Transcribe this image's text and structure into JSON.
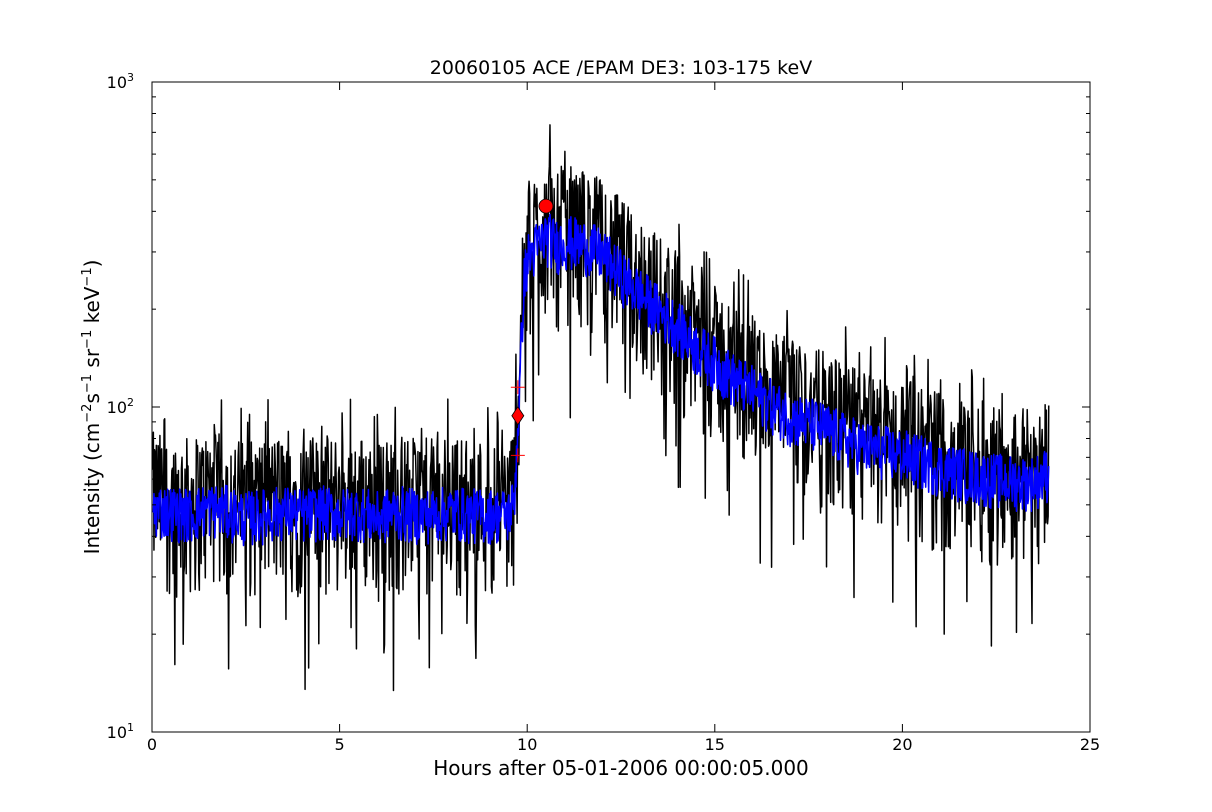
{
  "chart_data": {
    "type": "line",
    "title": "20060105 ACE /EPAM DE3: 103-175 keV",
    "xlabel": "Hours after 05-01-2006 00:00:05.000",
    "ylabel_parts": {
      "prefix": "Intensity (cm",
      "sup1": "−2",
      "mid1": "s",
      "sup2": "−1",
      "mid2": " sr",
      "sup3": "−1",
      "mid3": " keV",
      "sup4": "−1",
      "suffix": ")"
    },
    "xlim": [
      0,
      25
    ],
    "ylim": [
      10,
      1000
    ],
    "yscale": "log",
    "grid": false,
    "x_ticks": [
      {
        "value": 0,
        "label": "0"
      },
      {
        "value": 5,
        "label": "5"
      },
      {
        "value": 10,
        "label": "10"
      },
      {
        "value": 15,
        "label": "15"
      },
      {
        "value": 20,
        "label": "20"
      },
      {
        "value": 25,
        "label": "25"
      }
    ],
    "y_ticks": [
      {
        "value": 10,
        "base": "10",
        "exp": "1"
      },
      {
        "value": 100,
        "base": "10",
        "exp": "2"
      },
      {
        "value": 1000,
        "base": "10",
        "exp": "3"
      }
    ],
    "series": [
      {
        "role": "raw",
        "color": "#000000",
        "x": [
          0.0,
          0.5,
          1.0,
          1.5,
          2.0,
          2.5,
          3.0,
          3.5,
          4.0,
          4.5,
          5.0,
          5.5,
          6.0,
          6.5,
          7.0,
          7.5,
          8.0,
          8.5,
          9.0,
          9.5,
          9.65,
          9.75,
          9.8,
          9.9,
          10.0,
          10.2,
          10.5,
          10.8,
          11.0,
          11.5,
          12.0,
          12.5,
          13.0,
          13.5,
          14.0,
          14.5,
          15.0,
          15.5,
          16.0,
          16.5,
          17.0,
          17.5,
          18.0,
          18.5,
          19.0,
          19.5,
          20.0,
          20.5,
          21.0,
          21.5,
          22.0,
          22.5,
          23.0,
          23.5,
          23.9
        ],
        "y": [
          48,
          47,
          46,
          48,
          47,
          45,
          46,
          47,
          46,
          47,
          46,
          47,
          45,
          47,
          46,
          46,
          47,
          46,
          46,
          46,
          50,
          85,
          110,
          230,
          280,
          300,
          330,
          310,
          320,
          310,
          290,
          250,
          220,
          195,
          175,
          150,
          135,
          120,
          110,
          100,
          92,
          88,
          84,
          78,
          74,
          72,
          70,
          67,
          64,
          62,
          60,
          59,
          58,
          58,
          62
        ],
        "spread_low": 0.55,
        "spread_high": 1.75
      },
      {
        "role": "smoothed",
        "color": "#0000ff",
        "x": [
          0.0,
          0.5,
          1.0,
          1.5,
          2.0,
          2.5,
          3.0,
          3.5,
          4.0,
          4.5,
          5.0,
          5.5,
          6.0,
          6.5,
          7.0,
          7.5,
          8.0,
          8.5,
          9.0,
          9.5,
          9.65,
          9.75,
          9.8,
          9.9,
          10.0,
          10.2,
          10.5,
          10.8,
          11.0,
          11.5,
          12.0,
          12.5,
          13.0,
          13.5,
          14.0,
          14.5,
          15.0,
          15.5,
          16.0,
          16.5,
          17.0,
          17.5,
          18.0,
          18.5,
          19.0,
          19.5,
          20.0,
          20.5,
          21.0,
          21.5,
          22.0,
          22.5,
          23.0,
          23.5,
          23.9
        ],
        "y": [
          48,
          47,
          46,
          48,
          47,
          45,
          46,
          47,
          46,
          47,
          46,
          47,
          45,
          47,
          46,
          46,
          47,
          46,
          46,
          46,
          50,
          85,
          110,
          230,
          280,
          300,
          330,
          310,
          320,
          310,
          290,
          250,
          220,
          195,
          175,
          150,
          135,
          120,
          110,
          100,
          92,
          88,
          84,
          78,
          74,
          72,
          70,
          67,
          64,
          62,
          60,
          59,
          58,
          58,
          62
        ],
        "spread_low": 0.82,
        "spread_high": 1.22
      }
    ],
    "markers": [
      {
        "kind": "plus",
        "x": 9.75,
        "y": 115,
        "color": "#ff0000"
      },
      {
        "kind": "diamond",
        "x": 9.75,
        "y": 94,
        "color": "#ff0000"
      },
      {
        "kind": "plus",
        "x": 9.75,
        "y": 71,
        "color": "#ff0000"
      },
      {
        "kind": "circle",
        "x": 10.5,
        "y": 415,
        "color": "#ff0000"
      }
    ]
  }
}
